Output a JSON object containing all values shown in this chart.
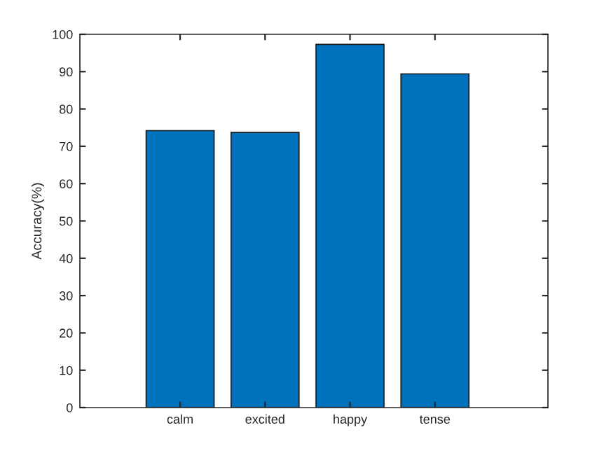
{
  "chart_data": {
    "type": "bar",
    "ylabel": "Accuracy(%)",
    "categories": [
      "calm",
      "excited",
      "happy",
      "tense"
    ],
    "values": [
      74.2,
      73.7,
      97.3,
      89.4
    ],
    "color": "#0072bd",
    "ylim": [
      0,
      100
    ],
    "yticks": [
      0,
      10,
      20,
      30,
      40,
      50,
      60,
      70,
      80,
      90,
      100
    ],
    "grid": false
  }
}
